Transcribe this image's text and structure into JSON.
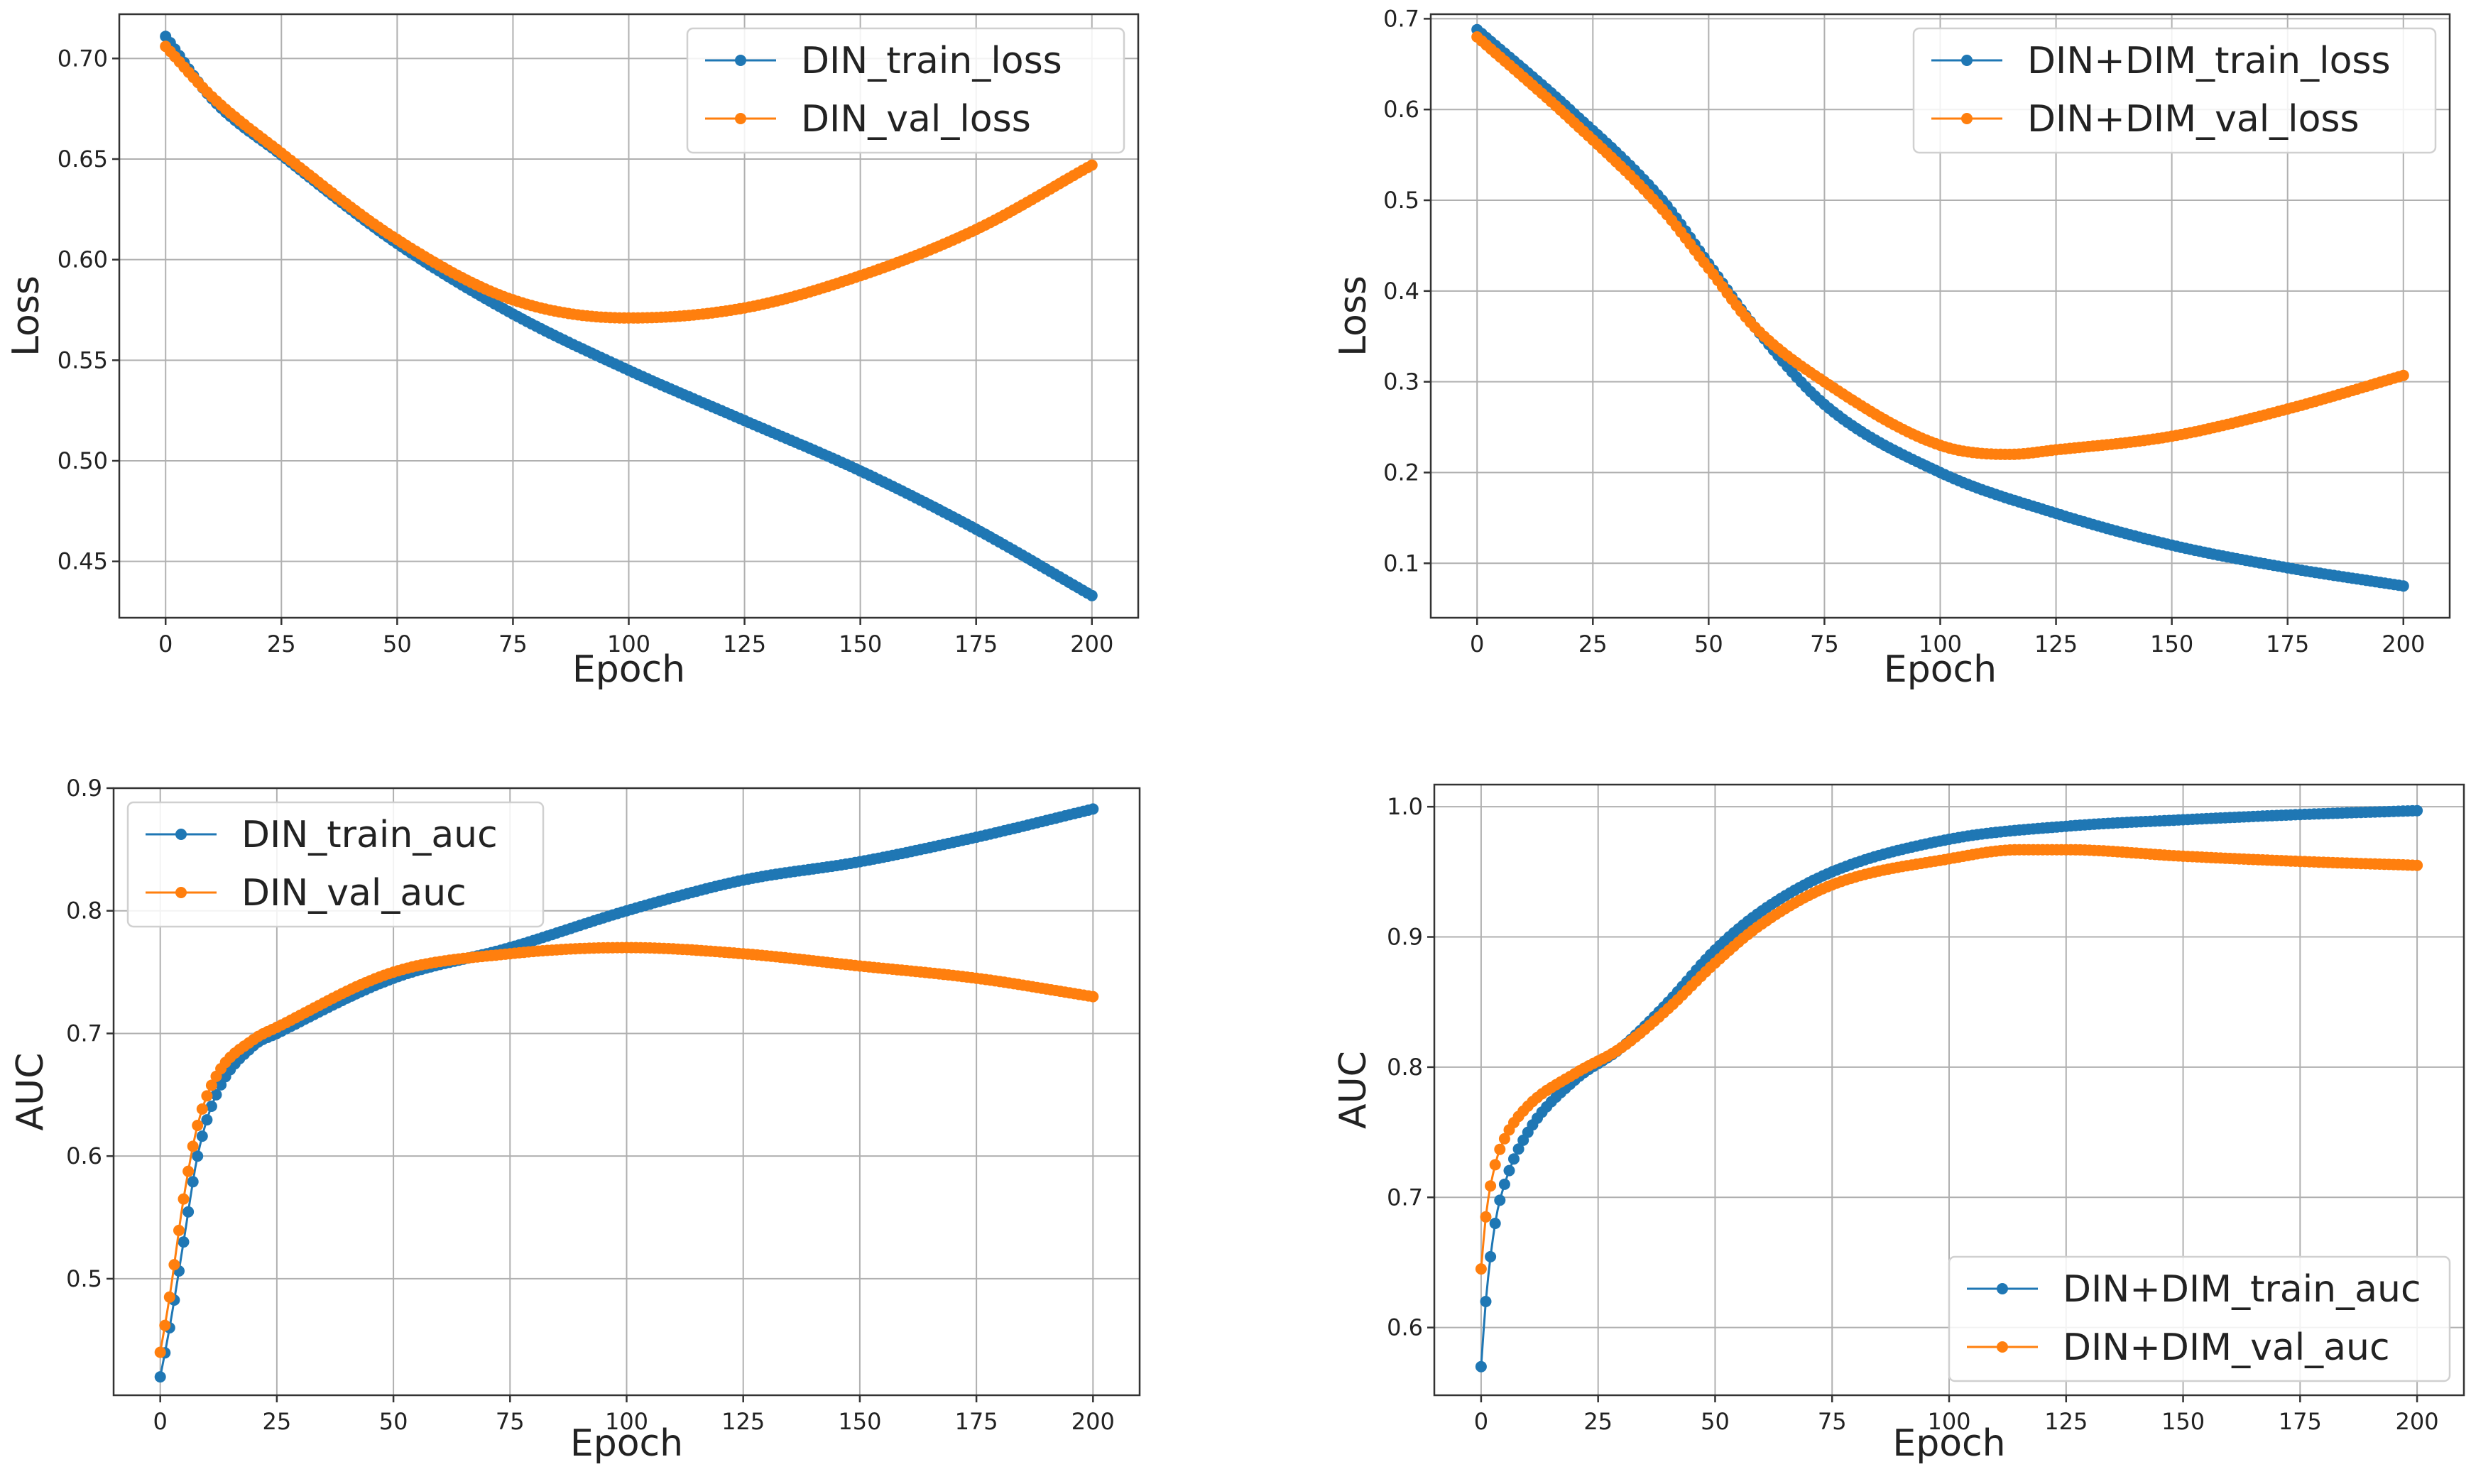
{
  "chart_data": [
    {
      "type": "line",
      "xlabel": "Epoch",
      "ylabel": "Loss",
      "xlim": [
        -10,
        210
      ],
      "ylim": [
        0.422,
        0.722
      ],
      "xticks": [
        0,
        25,
        50,
        75,
        100,
        125,
        150,
        175,
        200
      ],
      "xtick_labels": [
        "0",
        "25",
        "50",
        "75",
        "100",
        "125",
        "150",
        "175",
        "200"
      ],
      "yticks": [
        0.45,
        0.5,
        0.55,
        0.6,
        0.65,
        0.7
      ],
      "ytick_labels": [
        "0.45",
        "0.50",
        "0.55",
        "0.60",
        "0.65",
        "0.70"
      ],
      "grid": true,
      "legend_position": "upper right",
      "series": [
        {
          "name": "DIN_train_loss",
          "color": "#1f77b4",
          "points": [
            [
              0,
              0.711
            ],
            [
              10,
              0.68
            ],
            [
              25,
              0.652
            ],
            [
              50,
              0.608
            ],
            [
              75,
              0.573
            ],
            [
              100,
              0.545
            ],
            [
              125,
              0.52
            ],
            [
              150,
              0.495
            ],
            [
              175,
              0.466
            ],
            [
              200,
              0.433
            ]
          ]
        },
        {
          "name": "DIN_val_loss",
          "color": "#ff7f0e",
          "points": [
            [
              0,
              0.706
            ],
            [
              10,
              0.681
            ],
            [
              25,
              0.653
            ],
            [
              50,
              0.61
            ],
            [
              75,
              0.58
            ],
            [
              100,
              0.571
            ],
            [
              125,
              0.576
            ],
            [
              150,
              0.592
            ],
            [
              175,
              0.615
            ],
            [
              200,
              0.647
            ]
          ]
        }
      ]
    },
    {
      "type": "line",
      "xlabel": "Epoch",
      "ylabel": "Loss",
      "xlim": [
        -10,
        210
      ],
      "ylim": [
        0.04,
        0.705
      ],
      "xticks": [
        0,
        25,
        50,
        75,
        100,
        125,
        150,
        175,
        200
      ],
      "xtick_labels": [
        "0",
        "25",
        "50",
        "75",
        "100",
        "125",
        "150",
        "175",
        "200"
      ],
      "yticks": [
        0.1,
        0.2,
        0.3,
        0.4,
        0.5,
        0.6,
        0.7
      ],
      "ytick_labels": [
        "0.1",
        "0.2",
        "0.3",
        "0.4",
        "0.5",
        "0.6",
        "0.7"
      ],
      "grid": true,
      "legend_position": "upper right",
      "series": [
        {
          "name": "DIN+DIM_train_loss",
          "color": "#1f77b4",
          "points": [
            [
              0,
              0.688
            ],
            [
              20,
              0.6
            ],
            [
              40,
              0.5
            ],
            [
              50,
              0.43
            ],
            [
              60,
              0.36
            ],
            [
              75,
              0.275
            ],
            [
              100,
              0.2
            ],
            [
              125,
              0.155
            ],
            [
              150,
              0.12
            ],
            [
              175,
              0.095
            ],
            [
              200,
              0.075
            ]
          ]
        },
        {
          "name": "DIN+DIM_val_loss",
          "color": "#ff7f0e",
          "points": [
            [
              0,
              0.68
            ],
            [
              20,
              0.59
            ],
            [
              40,
              0.49
            ],
            [
              50,
              0.425
            ],
            [
              60,
              0.36
            ],
            [
              75,
              0.3
            ],
            [
              100,
              0.23
            ],
            [
              115,
              0.22
            ],
            [
              125,
              0.225
            ],
            [
              150,
              0.24
            ],
            [
              175,
              0.27
            ],
            [
              200,
              0.307
            ]
          ]
        }
      ]
    },
    {
      "type": "line",
      "xlabel": "Epoch",
      "ylabel": "AUC",
      "xlim": [
        -10,
        210
      ],
      "ylim": [
        0.405,
        0.9
      ],
      "xticks": [
        0,
        25,
        50,
        75,
        100,
        125,
        150,
        175,
        200
      ],
      "xtick_labels": [
        "0",
        "25",
        "50",
        "75",
        "100",
        "125",
        "150",
        "175",
        "200"
      ],
      "yticks": [
        0.5,
        0.6,
        0.7,
        0.8,
        0.9
      ],
      "ytick_labels": [
        "0.5",
        "0.6",
        "0.7",
        "0.8",
        "0.9"
      ],
      "grid": true,
      "legend_position": "upper left",
      "series": [
        {
          "name": "DIN_train_auc",
          "color": "#1f77b4",
          "points": [
            [
              0,
              0.42
            ],
            [
              2,
              0.46
            ],
            [
              5,
              0.53
            ],
            [
              8,
              0.6
            ],
            [
              12,
              0.65
            ],
            [
              20,
              0.69
            ],
            [
              25,
              0.7
            ],
            [
              50,
              0.745
            ],
            [
              75,
              0.77
            ],
            [
              100,
              0.8
            ],
            [
              125,
              0.825
            ],
            [
              150,
              0.84
            ],
            [
              175,
              0.86
            ],
            [
              200,
              0.883
            ]
          ]
        },
        {
          "name": "DIN_val_auc",
          "color": "#ff7f0e",
          "points": [
            [
              0,
              0.44
            ],
            [
              2,
              0.485
            ],
            [
              5,
              0.565
            ],
            [
              8,
              0.625
            ],
            [
              12,
              0.665
            ],
            [
              20,
              0.695
            ],
            [
              25,
              0.705
            ],
            [
              50,
              0.75
            ],
            [
              75,
              0.765
            ],
            [
              100,
              0.77
            ],
            [
              125,
              0.765
            ],
            [
              150,
              0.755
            ],
            [
              175,
              0.745
            ],
            [
              200,
              0.73
            ]
          ]
        }
      ]
    },
    {
      "type": "line",
      "xlabel": "Epoch",
      "ylabel": "AUC",
      "xlim": [
        -10,
        210
      ],
      "ylim": [
        0.548,
        1.017
      ],
      "xticks": [
        0,
        25,
        50,
        75,
        100,
        125,
        150,
        175,
        200
      ],
      "xtick_labels": [
        "0",
        "25",
        "50",
        "75",
        "100",
        "125",
        "150",
        "175",
        "200"
      ],
      "yticks": [
        0.6,
        0.7,
        0.8,
        0.9,
        1.0
      ],
      "ytick_labels": [
        "0.6",
        "0.7",
        "0.8",
        "0.9",
        "1.0"
      ],
      "grid": true,
      "legend_position": "lower right",
      "series": [
        {
          "name": "DIN+DIM_train_auc",
          "color": "#1f77b4",
          "points": [
            [
              0,
              0.57
            ],
            [
              1,
              0.62
            ],
            [
              3,
              0.68
            ],
            [
              5,
              0.71
            ],
            [
              10,
              0.75
            ],
            [
              20,
              0.79
            ],
            [
              30,
              0.815
            ],
            [
              40,
              0.85
            ],
            [
              50,
              0.89
            ],
            [
              60,
              0.92
            ],
            [
              75,
              0.95
            ],
            [
              100,
              0.975
            ],
            [
              125,
              0.985
            ],
            [
              150,
              0.99
            ],
            [
              175,
              0.994
            ],
            [
              200,
              0.997
            ]
          ]
        },
        {
          "name": "DIN+DIM_val_auc",
          "color": "#ff7f0e",
          "points": [
            [
              0,
              0.645
            ],
            [
              1,
              0.685
            ],
            [
              3,
              0.725
            ],
            [
              5,
              0.745
            ],
            [
              10,
              0.77
            ],
            [
              20,
              0.795
            ],
            [
              30,
              0.815
            ],
            [
              40,
              0.845
            ],
            [
              50,
              0.88
            ],
            [
              60,
              0.91
            ],
            [
              75,
              0.94
            ],
            [
              100,
              0.96
            ],
            [
              115,
              0.967
            ],
            [
              125,
              0.967
            ],
            [
              150,
              0.962
            ],
            [
              175,
              0.958
            ],
            [
              200,
              0.955
            ]
          ]
        }
      ]
    }
  ]
}
